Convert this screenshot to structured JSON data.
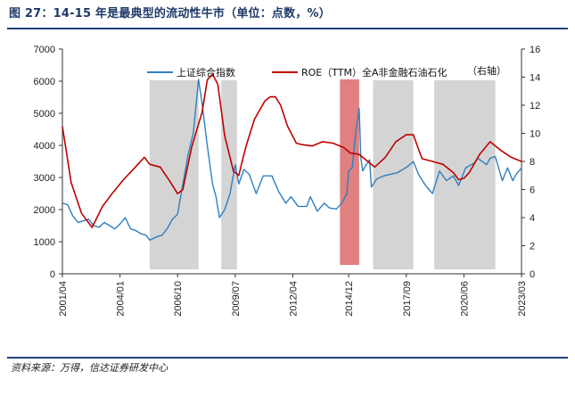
{
  "figure": {
    "title": "图 27：14-15 年是最典型的流动性牛市（单位：点数，%）",
    "source": "资料来源：万得，信达证券研发中心",
    "right_axis_note": "（右轴）"
  },
  "colors": {
    "title": "#1f3a68",
    "rule": "#23407a",
    "shanghai": "#2f7fc1",
    "roe": "#c00000",
    "shade_gray": "#d4d4d4",
    "shade_red": "#e08080"
  },
  "chart_data": {
    "type": "line",
    "title": "",
    "xlabel": "",
    "ylabel": "",
    "x_range": [
      "2001-04",
      "2023-03"
    ],
    "x_ticks": [
      "2001/04",
      "2004/01",
      "2006/10",
      "2009/07",
      "2012/04",
      "2014/12",
      "2017/09",
      "2020/06",
      "2023/03"
    ],
    "y_left": {
      "min": 0,
      "max": 7000,
      "ticks": [
        0,
        1000,
        2000,
        3000,
        4000,
        5000,
        6000,
        7000
      ]
    },
    "y_right": {
      "min": 0,
      "max": 16,
      "ticks": [
        0,
        2,
        4,
        6,
        8,
        10,
        12,
        14,
        16
      ]
    },
    "legend_position": "top",
    "shaded_periods": [
      {
        "start": "2005-06",
        "end": "2007-10",
        "highlight": false
      },
      {
        "start": "2008-11",
        "end": "2009-08",
        "highlight": false
      },
      {
        "start": "2014-07",
        "end": "2015-06",
        "highlight": true
      },
      {
        "start": "2016-02",
        "end": "2018-01",
        "highlight": false
      },
      {
        "start": "2019-01",
        "end": "2021-12",
        "highlight": false
      }
    ],
    "series": [
      {
        "name": "上证综合指数",
        "axis": "left",
        "points": [
          [
            "2001-04",
            2200
          ],
          [
            "2001-07",
            2150
          ],
          [
            "2001-10",
            1800
          ],
          [
            "2002-01",
            1600
          ],
          [
            "2002-04",
            1650
          ],
          [
            "2002-07",
            1700
          ],
          [
            "2002-10",
            1500
          ],
          [
            "2003-01",
            1450
          ],
          [
            "2003-04",
            1600
          ],
          [
            "2003-07",
            1500
          ],
          [
            "2003-10",
            1400
          ],
          [
            "2004-01",
            1550
          ],
          [
            "2004-04",
            1750
          ],
          [
            "2004-07",
            1400
          ],
          [
            "2004-10",
            1350
          ],
          [
            "2005-01",
            1250
          ],
          [
            "2005-04",
            1200
          ],
          [
            "2005-06",
            1050
          ],
          [
            "2005-10",
            1150
          ],
          [
            "2006-01",
            1200
          ],
          [
            "2006-04",
            1400
          ],
          [
            "2006-07",
            1700
          ],
          [
            "2006-10",
            1850
          ],
          [
            "2007-01",
            2800
          ],
          [
            "2007-04",
            3700
          ],
          [
            "2007-07",
            4400
          ],
          [
            "2007-10",
            6050
          ],
          [
            "2007-12",
            5300
          ],
          [
            "2008-03",
            4000
          ],
          [
            "2008-06",
            2800
          ],
          [
            "2008-08",
            2400
          ],
          [
            "2008-10",
            1750
          ],
          [
            "2009-01",
            2000
          ],
          [
            "2009-04",
            2500
          ],
          [
            "2009-07",
            3400
          ],
          [
            "2009-09",
            2800
          ],
          [
            "2009-12",
            3250
          ],
          [
            "2010-03",
            3100
          ],
          [
            "2010-07",
            2500
          ],
          [
            "2010-11",
            3050
          ],
          [
            "2011-04",
            3050
          ],
          [
            "2011-08",
            2550
          ],
          [
            "2011-12",
            2200
          ],
          [
            "2012-03",
            2400
          ],
          [
            "2012-07",
            2100
          ],
          [
            "2012-12",
            2100
          ],
          [
            "2013-02",
            2400
          ],
          [
            "2013-06",
            1950
          ],
          [
            "2013-10",
            2200
          ],
          [
            "2014-01",
            2050
          ],
          [
            "2014-05",
            2020
          ],
          [
            "2014-08",
            2200
          ],
          [
            "2014-11",
            2500
          ],
          [
            "2014-12",
            3200
          ],
          [
            "2015-02",
            3300
          ],
          [
            "2015-04",
            4400
          ],
          [
            "2015-06",
            5150
          ],
          [
            "2015-07",
            3600
          ],
          [
            "2015-08",
            3200
          ],
          [
            "2015-10",
            3400
          ],
          [
            "2015-12",
            3550
          ],
          [
            "2016-01",
            2700
          ],
          [
            "2016-04",
            2950
          ],
          [
            "2016-08",
            3050
          ],
          [
            "2016-12",
            3100
          ],
          [
            "2017-04",
            3150
          ],
          [
            "2017-10",
            3350
          ],
          [
            "2018-01",
            3500
          ],
          [
            "2018-04",
            3100
          ],
          [
            "2018-08",
            2750
          ],
          [
            "2018-12",
            2500
          ],
          [
            "2019-04",
            3200
          ],
          [
            "2019-08",
            2900
          ],
          [
            "2019-12",
            3050
          ],
          [
            "2020-03",
            2750
          ],
          [
            "2020-07",
            3300
          ],
          [
            "2020-12",
            3450
          ],
          [
            "2021-02",
            3600
          ],
          [
            "2021-07",
            3400
          ],
          [
            "2021-09",
            3600
          ],
          [
            "2021-12",
            3650
          ],
          [
            "2022-04",
            2900
          ],
          [
            "2022-07",
            3300
          ],
          [
            "2022-10",
            2900
          ],
          [
            "2022-12",
            3100
          ],
          [
            "2023-03",
            3300
          ]
        ]
      },
      {
        "name": "ROE（TTM）全A非金融石油石化",
        "axis": "right",
        "points": [
          [
            "2001-04",
            10.5
          ],
          [
            "2001-09",
            6.5
          ],
          [
            "2002-03",
            4.3
          ],
          [
            "2002-09",
            3.3
          ],
          [
            "2003-03",
            4.8
          ],
          [
            "2003-09",
            5.8
          ],
          [
            "2004-03",
            6.7
          ],
          [
            "2004-09",
            7.5
          ],
          [
            "2005-03",
            8.3
          ],
          [
            "2005-06",
            7.8
          ],
          [
            "2005-12",
            7.6
          ],
          [
            "2006-06",
            6.5
          ],
          [
            "2006-10",
            5.7
          ],
          [
            "2007-01",
            6.0
          ],
          [
            "2007-06",
            9.0
          ],
          [
            "2007-12",
            11.5
          ],
          [
            "2008-03",
            13.8
          ],
          [
            "2008-06",
            14.2
          ],
          [
            "2008-09",
            13.5
          ],
          [
            "2009-01",
            9.8
          ],
          [
            "2009-06",
            7.3
          ],
          [
            "2009-09",
            7.0
          ],
          [
            "2010-01",
            9.0
          ],
          [
            "2010-06",
            11.0
          ],
          [
            "2010-12",
            12.3
          ],
          [
            "2011-03",
            12.6
          ],
          [
            "2011-06",
            12.6
          ],
          [
            "2011-09",
            12.0
          ],
          [
            "2012-01",
            10.5
          ],
          [
            "2012-06",
            9.3
          ],
          [
            "2012-09",
            9.2
          ],
          [
            "2013-03",
            9.1
          ],
          [
            "2013-09",
            9.4
          ],
          [
            "2014-03",
            9.3
          ],
          [
            "2014-09",
            9.0
          ],
          [
            "2015-01",
            8.6
          ],
          [
            "2015-06",
            8.5
          ],
          [
            "2015-12",
            7.9
          ],
          [
            "2016-03",
            7.6
          ],
          [
            "2016-09",
            8.3
          ],
          [
            "2017-03",
            9.4
          ],
          [
            "2017-09",
            9.9
          ],
          [
            "2018-01",
            9.9
          ],
          [
            "2018-06",
            8.2
          ],
          [
            "2018-12",
            8.0
          ],
          [
            "2019-06",
            7.8
          ],
          [
            "2019-12",
            7.2
          ],
          [
            "2020-03",
            6.7
          ],
          [
            "2020-06",
            6.8
          ],
          [
            "2020-09",
            7.2
          ],
          [
            "2021-03",
            8.5
          ],
          [
            "2021-09",
            9.4
          ],
          [
            "2022-03",
            8.8
          ],
          [
            "2022-09",
            8.3
          ],
          [
            "2023-03",
            8.0
          ]
        ]
      }
    ]
  }
}
